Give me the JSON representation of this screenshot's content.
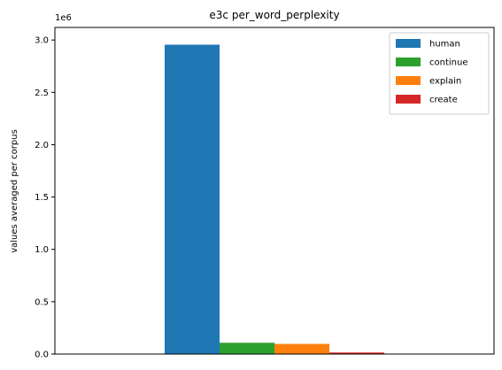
{
  "chart_data": {
    "type": "bar",
    "title": "e3c per_word_perplexity",
    "xlabel": "",
    "ylabel": "values averaged per corpus",
    "y_offset_label": "1e6",
    "ylim": [
      0,
      3.12
    ],
    "y_ticks": [
      0.0,
      0.5,
      1.0,
      1.5,
      2.0,
      2.5,
      3.0
    ],
    "y_tick_labels": [
      "0.0",
      "0.5",
      "1.0",
      "1.5",
      "2.0",
      "2.5",
      "3.0"
    ],
    "y_units_note": "values in millions (1e6)",
    "grid": false,
    "legend_position": "top-right",
    "series": [
      {
        "name": "human",
        "color": "#1f77b4",
        "values": [
          2.955
        ]
      },
      {
        "name": "continue",
        "color": "#2ca02c",
        "values": [
          0.108
        ]
      },
      {
        "name": "explain",
        "color": "#ff7f0e",
        "values": [
          0.097
        ]
      },
      {
        "name": "create",
        "color": "#d62728",
        "values": [
          0.015
        ]
      }
    ]
  }
}
